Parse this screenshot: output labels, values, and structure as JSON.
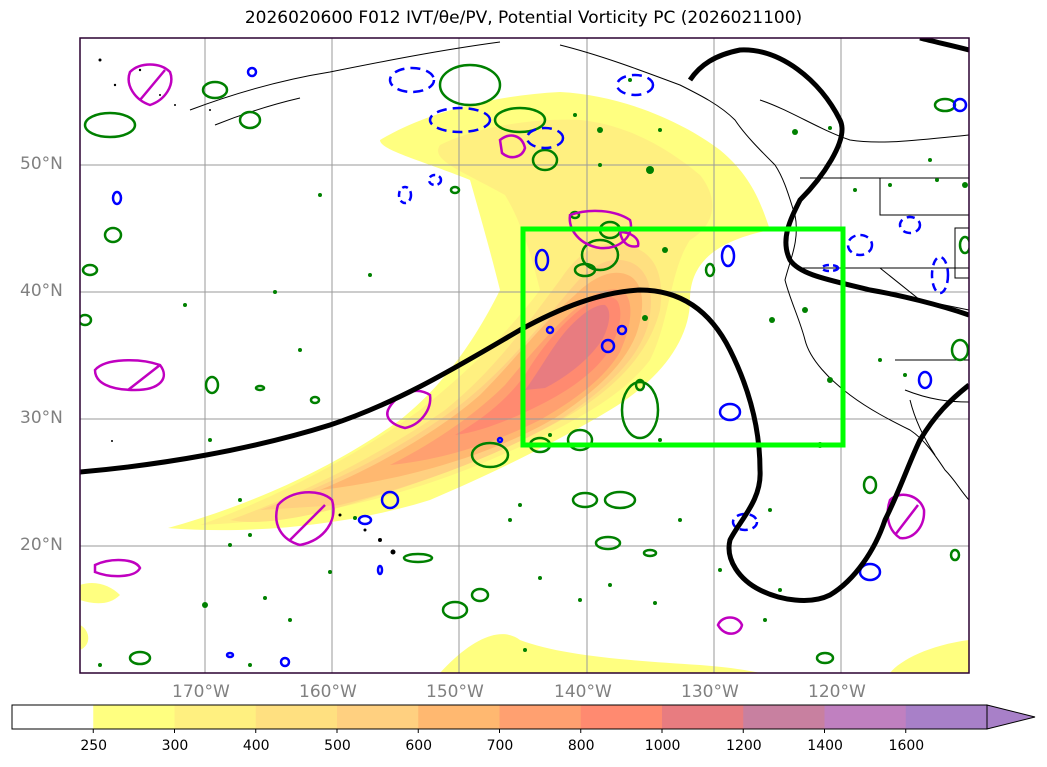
{
  "title": "2026020600 F012 IVT/θe/PV, Potential Vorticity PC (2026021100)",
  "lat_labels": [
    "50°N",
    "40°N",
    "30°N",
    "20°N"
  ],
  "lon_labels": [
    "170°W",
    "160°W",
    "150°W",
    "140°W",
    "130°W",
    "120°W"
  ],
  "colorbar": {
    "levels": [
      "250",
      "300",
      "400",
      "500",
      "600",
      "700",
      "800",
      "1000",
      "1200",
      "1400",
      "1600"
    ],
    "colors": [
      "#ffffff",
      "#ffff80",
      "#fff080",
      "#ffe080",
      "#ffd080",
      "#ffb870",
      "#ffa070",
      "#ff8a70",
      "#e87c80",
      "#c880a0",
      "#c080c0",
      "#a880c8"
    ]
  },
  "colors": {
    "box": "#00ff00",
    "contour_black": "#000000",
    "pv_green": "#008000",
    "pv_blue": "#0000ff",
    "pv_magenta": "#c000c0"
  }
}
